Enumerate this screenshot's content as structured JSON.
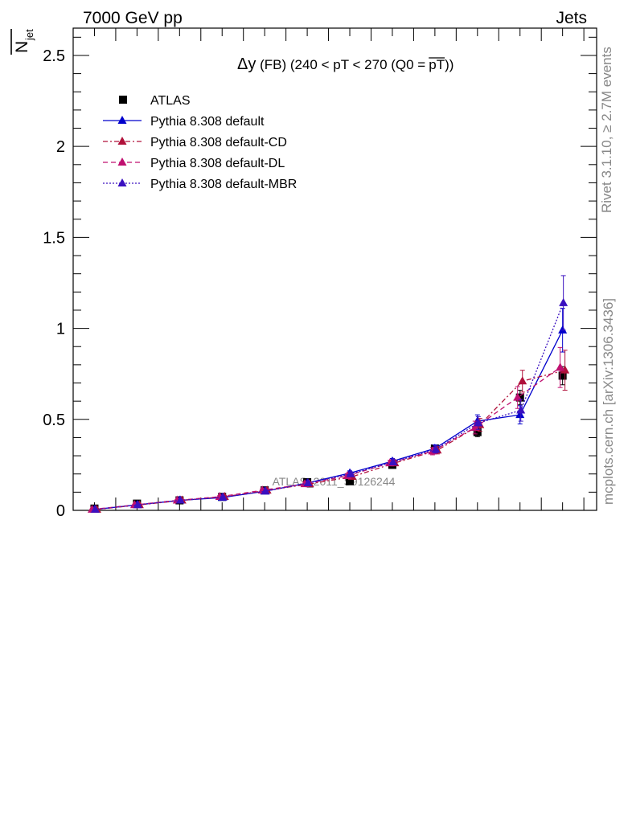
{
  "header": {
    "left": "7000 GeV pp",
    "right": "Jets"
  },
  "side_labels": {
    "rivet": "Rivet 3.1.10, ≥ 2.7M events",
    "mcplots": "mcplots.cern.ch [arXiv:1306.3436]"
  },
  "watermark": "ATLAS_2011_S9126244",
  "chart_data": {
    "type": "line",
    "title": "Δy (FB) (240 < pT < 270 (Q0 = pT))",
    "title_parts": {
      "delta_y": "Δy",
      "rest": " (FB) (240 < pT < 270 (Q0 =",
      "overlined": "pT",
      "close": "))"
    },
    "ylabel": "N̅jet",
    "ylabel_parts": {
      "main": "N",
      "sub": "jet"
    },
    "xlabel": "",
    "ylim": [
      0,
      2.65
    ],
    "xlim": [
      0,
      12.3
    ],
    "yticks": [
      "0",
      "0.5",
      "1",
      "1.5",
      "2",
      "2.5"
    ],
    "legend_position": "top-left",
    "x": [
      0.5,
      1.5,
      2.5,
      3.5,
      4.5,
      5.5,
      6.5,
      7.5,
      8.5,
      9.5,
      10.5,
      11.5
    ],
    "series": [
      {
        "name": "ATLAS",
        "style": "data",
        "color": "#000000",
        "values": [
          0.01,
          0.037,
          0.055,
          0.074,
          0.11,
          0.155,
          0.16,
          0.25,
          0.34,
          0.43,
          0.62,
          0.74
        ],
        "errors": [
          0.003,
          0.005,
          0.005,
          0.006,
          0.008,
          0.01,
          0.01,
          0.015,
          0.02,
          0.025,
          0.04,
          0.05
        ]
      },
      {
        "name": "Pythia 8.308 default",
        "style": "solid",
        "color": "#0000cc",
        "values": [
          0.005,
          0.03,
          0.055,
          0.07,
          0.105,
          0.15,
          0.205,
          0.27,
          0.34,
          0.49,
          0.525,
          0.99
        ],
        "errors": [
          0.002,
          0.004,
          0.005,
          0.006,
          0.007,
          0.01,
          0.012,
          0.015,
          0.02,
          0.035,
          0.05,
          0.12
        ]
      },
      {
        "name": "Pythia 8.308 default-CD",
        "style": "dashdot",
        "color": "#b0103a",
        "values": [
          0.005,
          0.03,
          0.055,
          0.075,
          0.11,
          0.145,
          0.185,
          0.26,
          0.33,
          0.47,
          0.71,
          0.77
        ],
        "errors": [
          0.002,
          0.004,
          0.005,
          0.006,
          0.008,
          0.01,
          0.012,
          0.015,
          0.02,
          0.035,
          0.06,
          0.11
        ]
      },
      {
        "name": "Pythia 8.308 default-DL",
        "style": "dashed",
        "color": "#c01070",
        "values": [
          0.005,
          0.03,
          0.055,
          0.075,
          0.11,
          0.145,
          0.19,
          0.26,
          0.325,
          0.455,
          0.62,
          0.785
        ],
        "errors": [
          0.002,
          0.004,
          0.005,
          0.006,
          0.008,
          0.01,
          0.012,
          0.015,
          0.02,
          0.035,
          0.06,
          0.11
        ]
      },
      {
        "name": "Pythia 8.308 default-MBR",
        "style": "dotted",
        "color": "#3a10c0",
        "values": [
          0.005,
          0.03,
          0.055,
          0.072,
          0.105,
          0.15,
          0.2,
          0.265,
          0.335,
          0.48,
          0.55,
          1.14
        ],
        "errors": [
          0.002,
          0.004,
          0.005,
          0.006,
          0.007,
          0.01,
          0.012,
          0.015,
          0.02,
          0.035,
          0.06,
          0.15
        ]
      }
    ]
  }
}
